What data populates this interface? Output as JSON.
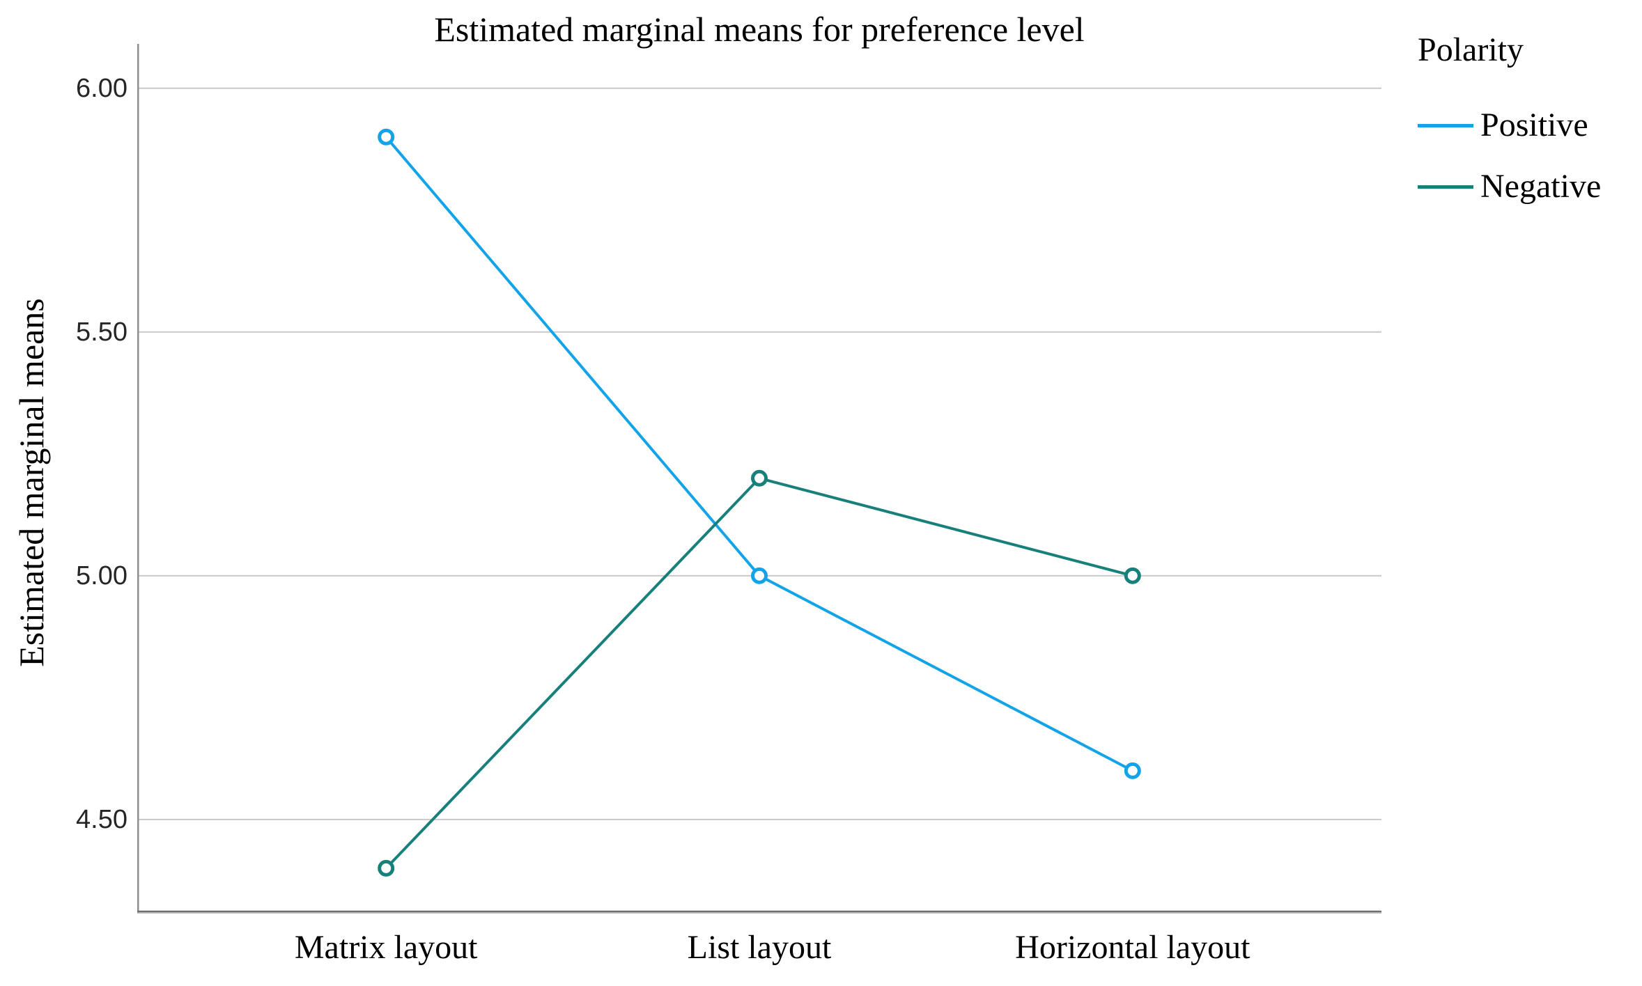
{
  "chart_data": {
    "type": "line",
    "title": "Estimated marginal means for preference level",
    "xlabel": "",
    "ylabel": "Estimated marginal means",
    "categories": [
      "Matrix layout",
      "List layout",
      "Horizontal layout"
    ],
    "category_positions": [
      0.2,
      0.5,
      0.8
    ],
    "series": [
      {
        "name": "Positive",
        "color": "#12A3E9",
        "values": [
          5.9,
          5.0,
          4.6
        ]
      },
      {
        "name": "Negative",
        "color": "#17807B",
        "values": [
          4.4,
          5.2,
          5.0
        ]
      }
    ],
    "y_ticks": [
      {
        "value": 6.0,
        "label": "6.00"
      },
      {
        "value": 5.5,
        "label": "5.50"
      },
      {
        "value": 5.0,
        "label": "5.00"
      },
      {
        "value": 4.5,
        "label": "4.50"
      }
    ],
    "ylim": [
      4.307,
      6.091
    ],
    "grid": "horizontal",
    "marker": "open-circle",
    "legend": {
      "title": "Polarity",
      "position": "top-right"
    }
  },
  "colors": {
    "gridline": "#C9C9C9",
    "axis_left": "#8F8F8F",
    "axis_bottom_dark": "#6E6E6E",
    "axis_bottom_light": "#BDBDBD",
    "tick_text": "#262626",
    "text": "#000000",
    "marker_fill": "#FFFFFF"
  }
}
